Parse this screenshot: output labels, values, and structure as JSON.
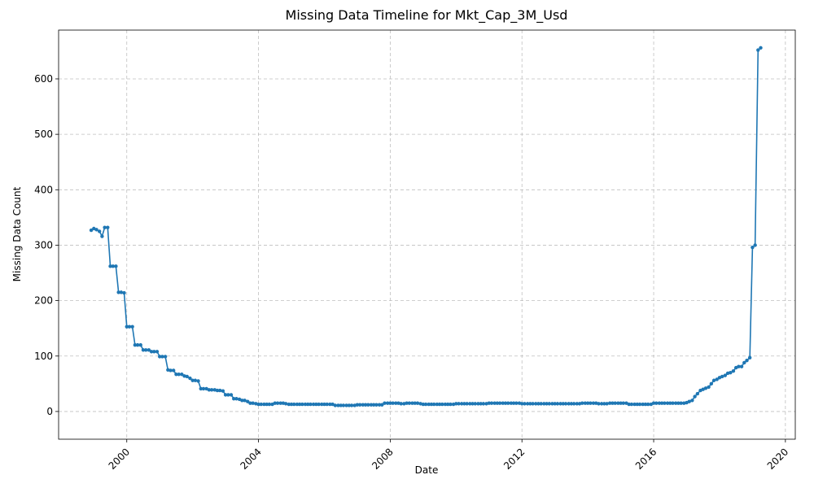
{
  "chart_data": {
    "type": "line",
    "title": "Missing Data Timeline for Mkt_Cap_3M_Usd",
    "x_label": "Date",
    "y_label": "Missing Data Count",
    "color": "#1f77b4",
    "grid": true,
    "xlim": [
      1997.93,
      2020.3
    ],
    "xticks": [
      2000,
      2004,
      2008,
      2012,
      2016,
      2020
    ],
    "ylim": [
      -50,
      688
    ],
    "yticks": [
      0,
      100,
      200,
      300,
      400,
      500,
      600
    ],
    "x": [
      1998.92,
      1999,
      1999.08,
      1999.17,
      1999.25,
      1999.33,
      1999.42,
      1999.5,
      1999.58,
      1999.67,
      1999.75,
      1999.83,
      1999.92,
      2000,
      2000.08,
      2000.17,
      2000.25,
      2000.33,
      2000.42,
      2000.5,
      2000.58,
      2000.67,
      2000.75,
      2000.83,
      2000.92,
      2001,
      2001.08,
      2001.17,
      2001.25,
      2001.33,
      2001.42,
      2001.5,
      2001.58,
      2001.67,
      2001.75,
      2001.83,
      2001.92,
      2002,
      2002.08,
      2002.17,
      2002.25,
      2002.33,
      2002.42,
      2002.5,
      2002.58,
      2002.67,
      2002.75,
      2002.83,
      2002.92,
      2003,
      2003.08,
      2003.17,
      2003.25,
      2003.33,
      2003.42,
      2003.5,
      2003.58,
      2003.67,
      2003.75,
      2003.83,
      2003.92,
      2004,
      2004.08,
      2004.17,
      2004.25,
      2004.33,
      2004.42,
      2004.5,
      2004.58,
      2004.67,
      2004.75,
      2004.83,
      2004.92,
      2005,
      2005.08,
      2005.17,
      2005.25,
      2005.33,
      2005.42,
      2005.5,
      2005.58,
      2005.67,
      2005.75,
      2005.83,
      2005.92,
      2006,
      2006.08,
      2006.17,
      2006.25,
      2006.33,
      2006.42,
      2006.5,
      2006.58,
      2006.67,
      2006.75,
      2006.83,
      2006.92,
      2007,
      2007.08,
      2007.17,
      2007.25,
      2007.33,
      2007.42,
      2007.5,
      2007.58,
      2007.67,
      2007.75,
      2007.83,
      2007.92,
      2008,
      2008.08,
      2008.17,
      2008.25,
      2008.33,
      2008.42,
      2008.5,
      2008.58,
      2008.67,
      2008.75,
      2008.83,
      2008.92,
      2009,
      2009.08,
      2009.17,
      2009.25,
      2009.33,
      2009.42,
      2009.5,
      2009.58,
      2009.67,
      2009.75,
      2009.83,
      2009.92,
      2010,
      2010.08,
      2010.17,
      2010.25,
      2010.33,
      2010.42,
      2010.5,
      2010.58,
      2010.67,
      2010.75,
      2010.83,
      2010.92,
      2011,
      2011.08,
      2011.17,
      2011.25,
      2011.33,
      2011.42,
      2011.5,
      2011.58,
      2011.67,
      2011.75,
      2011.83,
      2011.92,
      2012,
      2012.08,
      2012.17,
      2012.25,
      2012.33,
      2012.42,
      2012.5,
      2012.58,
      2012.67,
      2012.75,
      2012.83,
      2012.92,
      2013,
      2013.08,
      2013.17,
      2013.25,
      2013.33,
      2013.42,
      2013.5,
      2013.58,
      2013.67,
      2013.75,
      2013.83,
      2013.92,
      2014,
      2014.08,
      2014.17,
      2014.25,
      2014.33,
      2014.42,
      2014.5,
      2014.58,
      2014.67,
      2014.75,
      2014.83,
      2014.92,
      2015,
      2015.08,
      2015.17,
      2015.25,
      2015.33,
      2015.42,
      2015.5,
      2015.58,
      2015.67,
      2015.75,
      2015.83,
      2015.92,
      2016,
      2016.08,
      2016.17,
      2016.25,
      2016.33,
      2016.42,
      2016.5,
      2016.58,
      2016.67,
      2016.75,
      2016.83,
      2016.92,
      2017,
      2017.08,
      2017.17,
      2017.25,
      2017.33,
      2017.42,
      2017.5,
      2017.58,
      2017.67,
      2017.75,
      2017.83,
      2017.92,
      2018,
      2018.08,
      2018.17,
      2018.25,
      2018.33,
      2018.42,
      2018.5,
      2018.58,
      2018.67,
      2018.75,
      2018.83,
      2018.92,
      2019,
      2019.08,
      2019.17,
      2019.25
    ],
    "values": [
      327,
      330,
      328,
      325,
      316,
      332,
      332,
      262,
      262,
      262,
      215,
      215,
      214,
      153,
      153,
      153,
      120,
      120,
      120,
      111,
      111,
      111,
      108,
      108,
      108,
      99,
      99,
      99,
      75,
      74,
      74,
      67,
      67,
      67,
      64,
      63,
      60,
      56,
      56,
      55,
      41,
      41,
      41,
      39,
      39,
      39,
      38,
      38,
      37,
      30,
      30,
      30,
      23,
      23,
      22,
      20,
      20,
      18,
      15,
      15,
      14,
      13,
      13,
      13,
      13,
      13,
      13,
      15,
      15,
      15,
      15,
      14,
      13,
      13,
      13,
      13,
      13,
      13,
      13,
      13,
      13,
      13,
      13,
      13,
      13,
      13,
      13,
      13,
      13,
      11,
      11,
      11,
      11,
      11,
      11,
      11,
      11,
      12,
      12,
      12,
      12,
      12,
      12,
      12,
      12,
      12,
      12,
      15,
      15,
      15,
      15,
      15,
      15,
      14,
      14,
      15,
      15,
      15,
      15,
      15,
      14,
      13,
      13,
      13,
      13,
      13,
      13,
      13,
      13,
      13,
      13,
      13,
      13,
      14,
      14,
      14,
      14,
      14,
      14,
      14,
      14,
      14,
      14,
      14,
      14,
      15,
      15,
      15,
      15,
      15,
      15,
      15,
      15,
      15,
      15,
      15,
      15,
      14,
      14,
      14,
      14,
      14,
      14,
      14,
      14,
      14,
      14,
      14,
      14,
      14,
      14,
      14,
      14,
      14,
      14,
      14,
      14,
      14,
      14,
      15,
      15,
      15,
      15,
      15,
      15,
      14,
      14,
      14,
      14,
      15,
      15,
      15,
      15,
      15,
      15,
      15,
      13,
      13,
      13,
      13,
      13,
      13,
      13,
      13,
      13,
      15,
      15,
      15,
      15,
      15,
      15,
      15,
      15,
      15,
      15,
      15,
      15,
      16,
      18,
      20,
      27,
      32,
      38,
      40,
      42,
      44,
      50,
      56,
      58,
      61,
      63,
      65,
      69,
      70,
      73,
      79,
      81,
      81,
      88,
      92,
      97,
      296,
      300,
      652,
      656
    ]
  }
}
